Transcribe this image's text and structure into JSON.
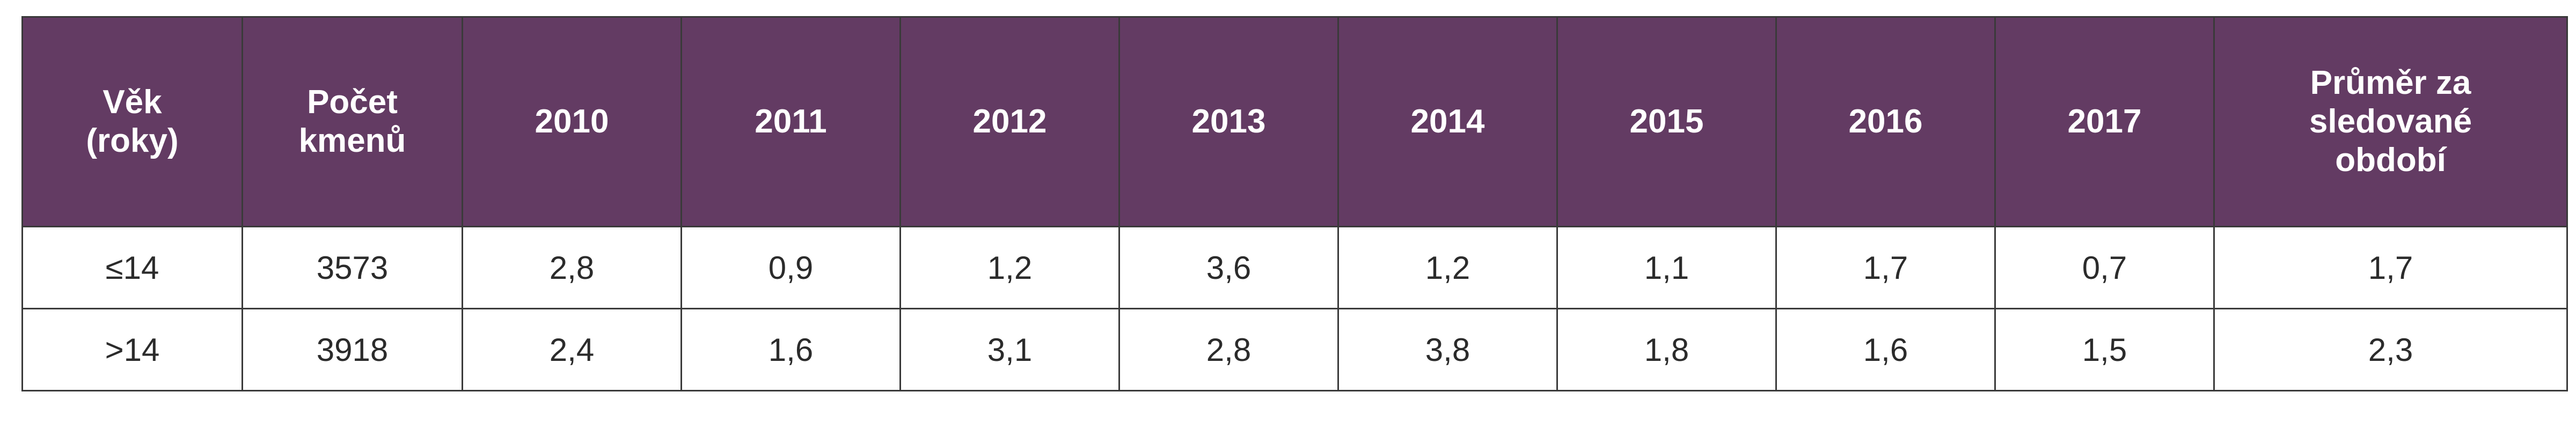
{
  "table": {
    "headers": [
      "Věk\n(roky)",
      "Počet\nkmenů",
      "2010",
      "2011",
      "2012",
      "2013",
      "2014",
      "2015",
      "2016",
      "2017",
      "Průměr za\nsledované\nobdobí"
    ],
    "rows": [
      [
        "≤14",
        "3573",
        "2,8",
        "0,9",
        "1,2",
        "3,6",
        "1,2",
        "1,1",
        "1,7",
        "0,7",
        "1,7"
      ],
      [
        ">14",
        "3918",
        "2,4",
        "1,6",
        "3,1",
        "2,8",
        "3,8",
        "1,8",
        "1,6",
        "1,5",
        "2,3"
      ]
    ]
  },
  "colors": {
    "header_background": "#633b63",
    "header_text": "#ffffff",
    "border": "#3a3a3a",
    "body_text": "#2b2b2b"
  }
}
